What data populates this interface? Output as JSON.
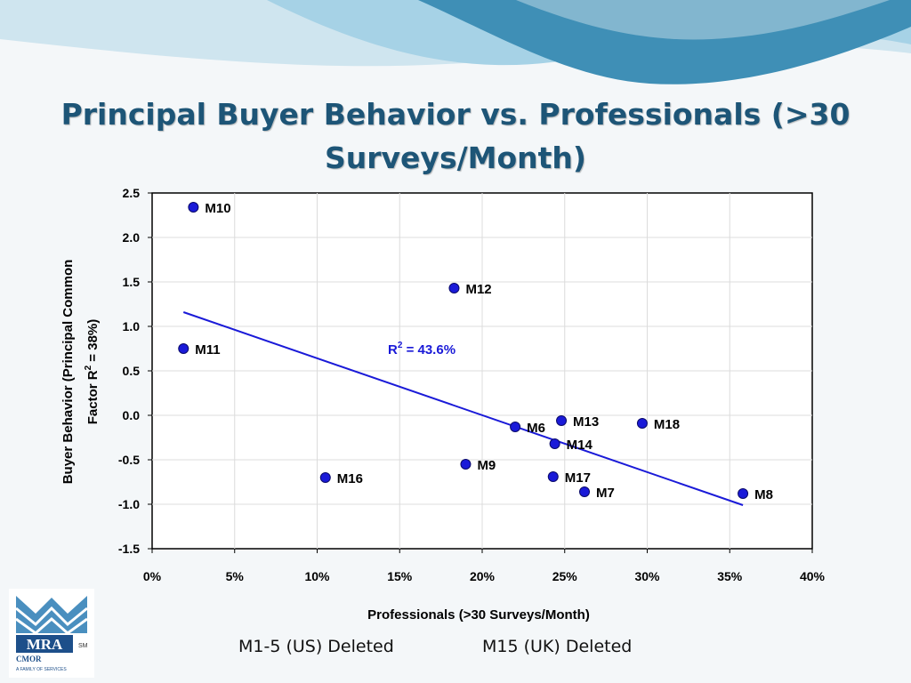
{
  "slide": {
    "title": "Principal Buyer Behavior vs. Professionals (>30 Surveys/Month)",
    "notes": [
      "M1-5 (US) Deleted",
      "M15 (UK) Deleted"
    ],
    "logo_text": "MRA",
    "logo_sub": "CMOR",
    "logo_small": "A FAMILY OF SERVICES",
    "logo_mark": "SM"
  },
  "colors": {
    "title": "#1d5577",
    "marker": "#1a1ad8",
    "trendline": "#1a1ad8",
    "r2_text": "#1a1ad8",
    "wave_dark": "#3f8fb6",
    "wave_light": "#a6d2e6"
  },
  "chart_data": {
    "type": "scatter",
    "title": "",
    "xlabel": "Professionals (>30 Surveys/Month)",
    "ylabel_line1": "Buyer Behavior (Principal Common",
    "ylabel_line2_prefix": "Factor R",
    "ylabel_line2_sup": "2",
    "ylabel_line2_suffix": " = 38%)",
    "xlim": [
      0,
      0.4
    ],
    "ylim": [
      -1.5,
      2.5
    ],
    "x_ticks": [
      0,
      0.05,
      0.1,
      0.15,
      0.2,
      0.25,
      0.3,
      0.35,
      0.4
    ],
    "x_tick_labels": [
      "0%",
      "5%",
      "10%",
      "15%",
      "20%",
      "25%",
      "30%",
      "35%",
      "40%"
    ],
    "y_ticks": [
      -1.5,
      -1.0,
      -0.5,
      0.0,
      0.5,
      1.0,
      1.5,
      2.0,
      2.5
    ],
    "y_tick_labels": [
      "-1.5",
      "-1.0",
      "-0.5",
      "0.0",
      "0.5",
      "1.0",
      "1.5",
      "2.0",
      "2.5"
    ],
    "grid": true,
    "points": [
      {
        "label": "M10",
        "x": 0.025,
        "y": 2.34
      },
      {
        "label": "M12",
        "x": 0.183,
        "y": 1.43
      },
      {
        "label": "M11",
        "x": 0.019,
        "y": 0.75
      },
      {
        "label": "M6",
        "x": 0.22,
        "y": -0.13
      },
      {
        "label": "M13",
        "x": 0.248,
        "y": -0.06
      },
      {
        "label": "M18",
        "x": 0.297,
        "y": -0.09
      },
      {
        "label": "M14",
        "x": 0.244,
        "y": -0.32
      },
      {
        "label": "M9",
        "x": 0.19,
        "y": -0.55
      },
      {
        "label": "M16",
        "x": 0.105,
        "y": -0.7
      },
      {
        "label": "M17",
        "x": 0.243,
        "y": -0.69
      },
      {
        "label": "M7",
        "x": 0.262,
        "y": -0.86
      },
      {
        "label": "M8",
        "x": 0.358,
        "y": -0.88
      }
    ],
    "trendline": {
      "x": [
        0.019,
        0.358
      ],
      "y": [
        1.16,
        -1.01
      ]
    },
    "r2_annotation": {
      "prefix": "R",
      "sup": "2",
      "suffix": " = 43.6%"
    }
  }
}
